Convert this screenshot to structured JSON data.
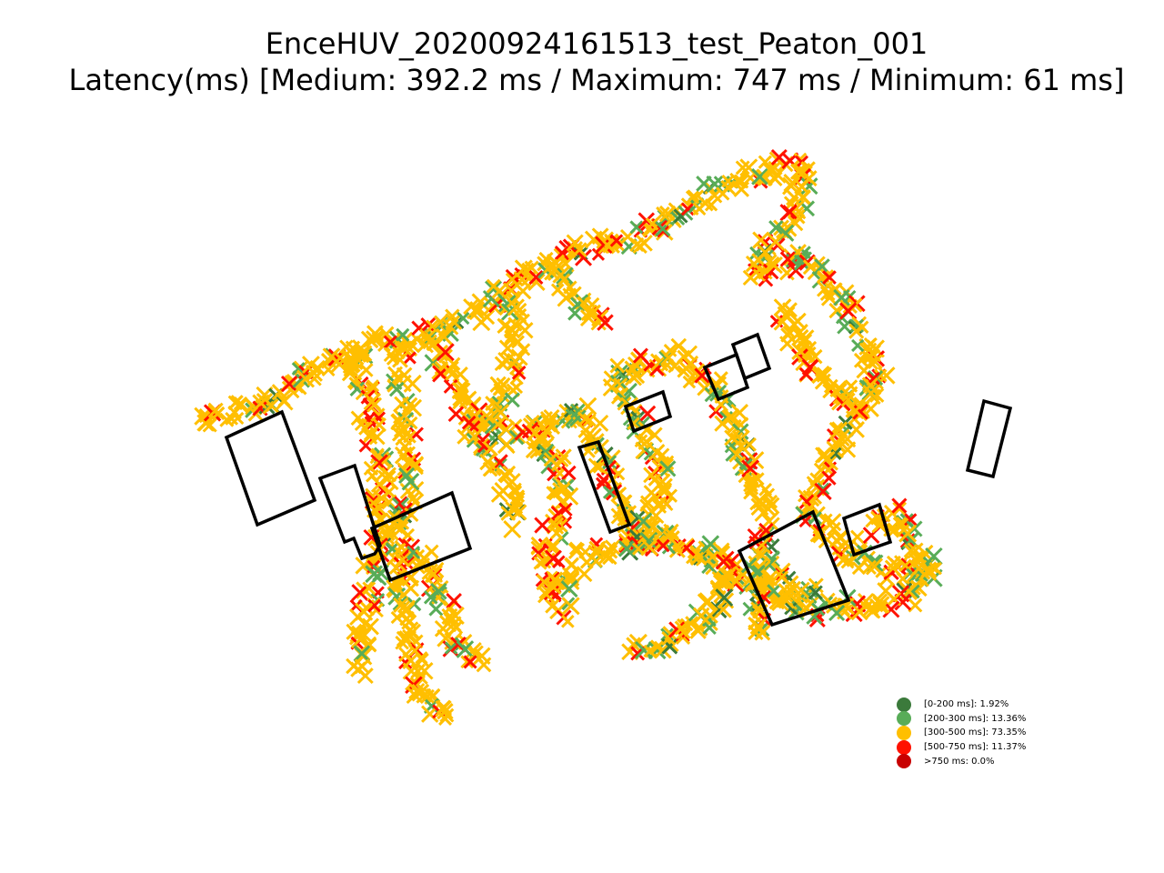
{
  "chart_data": {
    "type": "scatter",
    "title": "EnceHUV_20200924161513_test_Peaton_001",
    "subtitle": "Latency(ms) [Medium: 392.2 ms / Maximum: 747 ms / Minimum: 61 ms]",
    "xlabel": "",
    "ylabel": "",
    "grid": false,
    "axes_visible": false,
    "legend_placement": "lower-right",
    "marker": "x",
    "legend": [
      {
        "label": "[0-200 ms]: 1.92%",
        "percent": 1.92,
        "color": "#3b7a3b"
      },
      {
        "label": "[200-300 ms]: 13.36%",
        "percent": 13.36,
        "color": "#58ac58"
      },
      {
        "label": "[300-500 ms]: 73.35%",
        "percent": 73.35,
        "color": "#ffbf00"
      },
      {
        "label": "[500-750 ms]: 11.37%",
        "percent": 11.37,
        "color": "#ff1100"
      },
      {
        "label": ">750 ms: 0.0%",
        "percent": 0.0,
        "color": "#c80000"
      }
    ]
  }
}
